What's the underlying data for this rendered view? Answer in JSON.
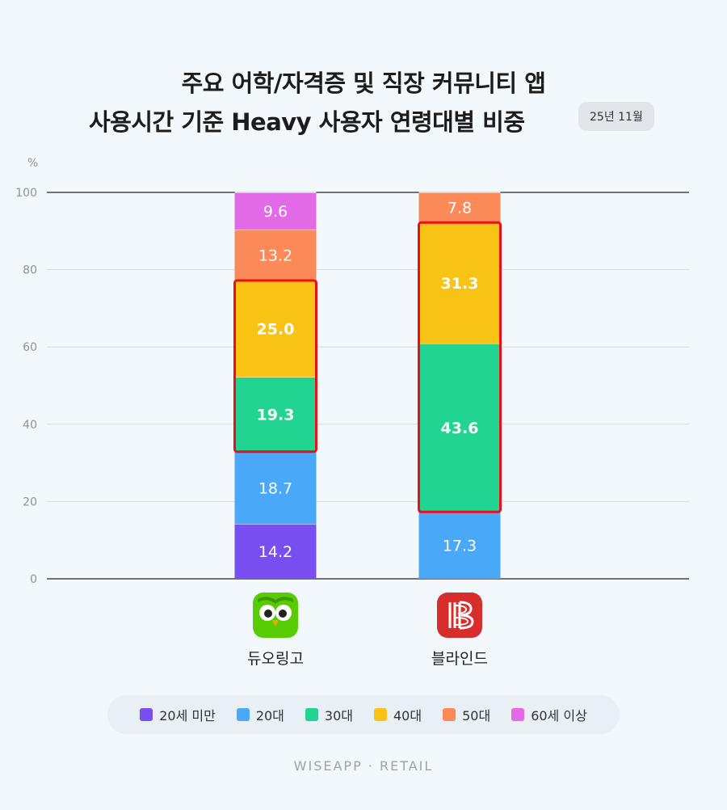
{
  "header": {
    "title_line1": "주요 어학/자격증 및 직장 커뮤니티 앱",
    "title_line2": "사용시간 기준 Heavy 사용자 연령대별 비중",
    "date_badge": "25년 11월"
  },
  "footer": {
    "watermark": "WISEAPP · RETAIL"
  },
  "apps": [
    {
      "name": "듀오링고",
      "icon": "duolingo-owl-icon",
      "icon_color": "#58cc02"
    },
    {
      "name": "블라인드",
      "icon": "blind-logo-icon",
      "icon_color": "#d82d2d"
    }
  ],
  "chart_data": {
    "type": "bar",
    "stacked": true,
    "unit_label": "%",
    "ylim": [
      0,
      100
    ],
    "yticks": [
      0,
      20,
      40,
      60,
      80,
      100
    ],
    "categories": [
      "듀오링고",
      "블라인드"
    ],
    "series": [
      {
        "name": "20세 미만",
        "color": "#7a4ff2",
        "values": [
          14.2,
          0
        ]
      },
      {
        "name": "20대",
        "color": "#4aa8f8",
        "values": [
          18.7,
          17.3
        ]
      },
      {
        "name": "30대",
        "color": "#22d491",
        "values": [
          19.3,
          43.6
        ]
      },
      {
        "name": "40대",
        "color": "#f9c316",
        "values": [
          25.0,
          31.3
        ]
      },
      {
        "name": "50대",
        "color": "#fb8a58",
        "values": [
          13.2,
          7.8
        ]
      },
      {
        "name": "60세 이상",
        "color": "#e36ae6",
        "values": [
          9.6,
          0
        ]
      }
    ],
    "highlights": [
      {
        "category": "듀오링고",
        "series": [
          "30대",
          "40대"
        ]
      },
      {
        "category": "블라인드",
        "series": [
          "30대",
          "40대"
        ]
      }
    ],
    "highlight_color": "#e8101a",
    "grid": true,
    "legend_position": "bottom"
  }
}
